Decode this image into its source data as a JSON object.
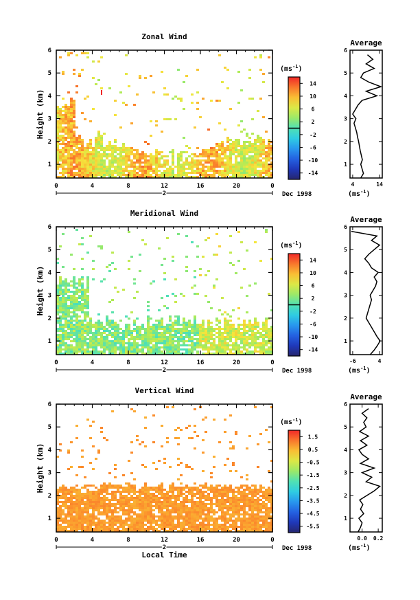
{
  "chart_data": [
    {
      "type": "heatmap",
      "title": "Zonal Wind",
      "ylabel": "Height (km)",
      "unit_label": "(ms",
      "unit_exp": "-1",
      "xticks": [
        "0",
        "4",
        "8",
        "12",
        "16",
        "20",
        "0"
      ],
      "xlim": [
        0,
        24
      ],
      "yticks": [
        "1",
        "2",
        "3",
        "4",
        "5",
        "6"
      ],
      "ylim": [
        0.4,
        6
      ],
      "colorbar": {
        "ticks": [
          "14",
          "10",
          "6",
          "2",
          "-2",
          "-6",
          "-10",
          "-14"
        ],
        "range": [
          -16,
          16
        ],
        "zero_line_value": 0
      },
      "day_label": "2",
      "date_label": "Dec 1998",
      "profile": {
        "title": "Average",
        "xticks": [
          "4",
          "14"
        ],
        "xlim": [
          3,
          15
        ],
        "xunit": "(ms",
        "xunit_exp": "-1",
        "heights": [
          0.4,
          0.6,
          0.8,
          1.0,
          1.2,
          1.4,
          1.6,
          1.8,
          2.0,
          2.2,
          2.4,
          2.6,
          2.8,
          3.0,
          3.2,
          3.4,
          3.6,
          3.8,
          4.0,
          4.2,
          4.4,
          4.6,
          4.8,
          5.0,
          5.2,
          5.4,
          5.6,
          5.8
        ],
        "values": [
          7.0,
          8.0,
          7.5,
          7.0,
          7.6,
          7.2,
          6.8,
          6.5,
          6.2,
          5.8,
          5.5,
          5.0,
          4.5,
          5.2,
          4.0,
          5.0,
          6.0,
          7.5,
          13.0,
          9.0,
          14.5,
          10.0,
          7.0,
          8.0,
          12.0,
          9.0,
          11.5,
          9.5
        ]
      }
    },
    {
      "type": "heatmap",
      "title": "Meridional Wind",
      "ylabel": "Height (km)",
      "unit_label": "(ms",
      "unit_exp": "-1",
      "xticks": [
        "0",
        "4",
        "8",
        "12",
        "16",
        "20",
        "0"
      ],
      "xlim": [
        0,
        24
      ],
      "yticks": [
        "1",
        "2",
        "3",
        "4",
        "5",
        "6"
      ],
      "ylim": [
        0.4,
        6
      ],
      "colorbar": {
        "ticks": [
          "14",
          "10",
          "6",
          "2",
          "-2",
          "-6",
          "-10",
          "-14"
        ],
        "range": [
          -16,
          16
        ],
        "zero_line_value": 0
      },
      "day_label": "2",
      "date_label": "Dec 1998",
      "profile": {
        "title": "Average",
        "xticks": [
          "-6",
          "4"
        ],
        "xlim": [
          -7,
          5
        ],
        "xunit": "(ms",
        "xunit_exp": "-1",
        "heights": [
          0.4,
          0.6,
          0.8,
          1.0,
          1.2,
          1.4,
          1.6,
          1.8,
          2.0,
          2.2,
          2.4,
          2.6,
          2.8,
          3.0,
          3.2,
          3.4,
          3.6,
          3.8,
          4.0,
          4.2,
          4.4,
          4.6,
          4.8,
          5.0,
          5.2,
          5.4,
          5.6,
          5.8
        ],
        "values": [
          0.5,
          2.0,
          3.2,
          4.2,
          3.0,
          2.0,
          1.0,
          0.0,
          -1.0,
          -0.5,
          0.0,
          0.5,
          1.0,
          0.5,
          1.5,
          2.5,
          3.0,
          2.0,
          3.5,
          1.0,
          0.0,
          -1.5,
          0.0,
          2.0,
          4.0,
          1.0,
          3.0,
          -6.5
        ]
      }
    },
    {
      "type": "heatmap",
      "title": "Vertical Wind",
      "ylabel": "Height (km)",
      "xlabel": "Local Time",
      "unit_label": "(ms",
      "unit_exp": "-1",
      "xticks": [
        "0",
        "4",
        "8",
        "12",
        "16",
        "20",
        "0"
      ],
      "xlim": [
        0,
        24
      ],
      "yticks": [
        "1",
        "2",
        "3",
        "4",
        "5",
        "6"
      ],
      "ylim": [
        0.4,
        6
      ],
      "colorbar": {
        "ticks": [
          "1.5",
          "0.5",
          "-0.5",
          "-1.5",
          "-2.5",
          "-3.5",
          "-4.5",
          "-5.5"
        ],
        "range": [
          -6,
          2
        ]
      },
      "day_label": "2",
      "date_label": "Dec 1998",
      "profile": {
        "title": "Average",
        "xticks": [
          "0.0",
          "0.2"
        ],
        "xlim": [
          -0.15,
          0.25
        ],
        "xunit": "(ms",
        "xunit_exp": "-1",
        "heights": [
          0.4,
          0.6,
          0.8,
          1.0,
          1.2,
          1.4,
          1.6,
          1.8,
          2.0,
          2.2,
          2.4,
          2.6,
          2.8,
          3.0,
          3.2,
          3.4,
          3.6,
          3.8,
          4.0,
          4.2,
          4.4,
          4.6,
          4.8,
          5.0,
          5.2,
          5.4,
          5.6,
          5.8
        ],
        "values": [
          -0.05,
          -0.02,
          0.0,
          -0.04,
          0.02,
          -0.02,
          0.01,
          -0.03,
          0.06,
          0.15,
          0.22,
          0.05,
          0.12,
          0.0,
          0.15,
          -0.02,
          0.08,
          0.0,
          -0.04,
          0.06,
          -0.02,
          0.08,
          -0.03,
          0.05,
          0.02,
          0.06,
          0.0,
          0.08
        ]
      }
    }
  ]
}
